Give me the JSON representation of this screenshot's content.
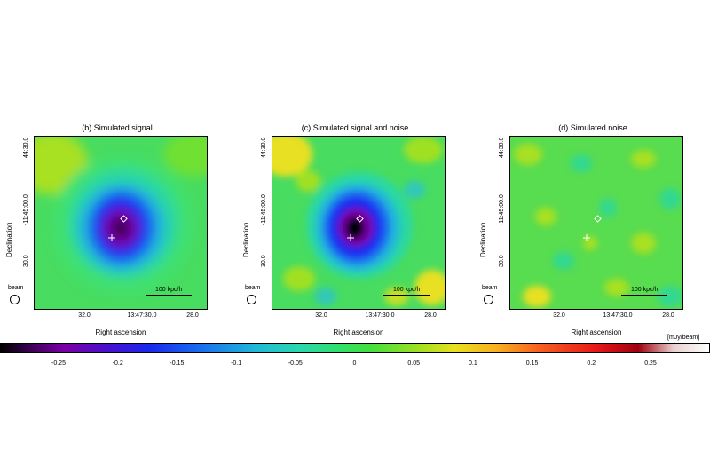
{
  "panels": [
    {
      "title": "(b) Simulated signal",
      "scale_label": "100 kpc/h",
      "beam_label": "beam",
      "ylabel": "Declination",
      "xlabel": "Right ascension",
      "yticks": [
        "44:30.0",
        "-11:45:00.0",
        "30.0"
      ],
      "xticks": [
        "32.0",
        "13:47:30.0",
        "28.0"
      ]
    },
    {
      "title": "(c) Simulated signal and noise",
      "scale_label": "100 kpc/h",
      "beam_label": "beam",
      "ylabel": "Declination",
      "xlabel": "Right ascension",
      "yticks": [
        "44:30.0",
        "-11:45:00.0",
        "30.0"
      ],
      "xticks": [
        "32.0",
        "13:47:30.0",
        "28.0"
      ]
    },
    {
      "title": "(d) Simulated noise",
      "scale_label": "100 kpc/h",
      "beam_label": "beam",
      "ylabel": "Declination",
      "xlabel": "Right ascension",
      "yticks": [
        "44:30.0",
        "-11:45:00.0",
        "30.0"
      ],
      "xticks": [
        "32.0",
        "13:47:30.0",
        "28.0"
      ]
    }
  ],
  "colorbar": {
    "unit": "[mJy/beam]",
    "ticks": [
      "-0.25",
      "-0.2",
      "-0.15",
      "-0.1",
      "-0.05",
      "0",
      "0.05",
      "0.1",
      "0.15",
      "0.2",
      "0.25"
    ]
  },
  "colors": {
    "background": "#40e040",
    "deep": "#1a28ee",
    "core": "#000000"
  }
}
